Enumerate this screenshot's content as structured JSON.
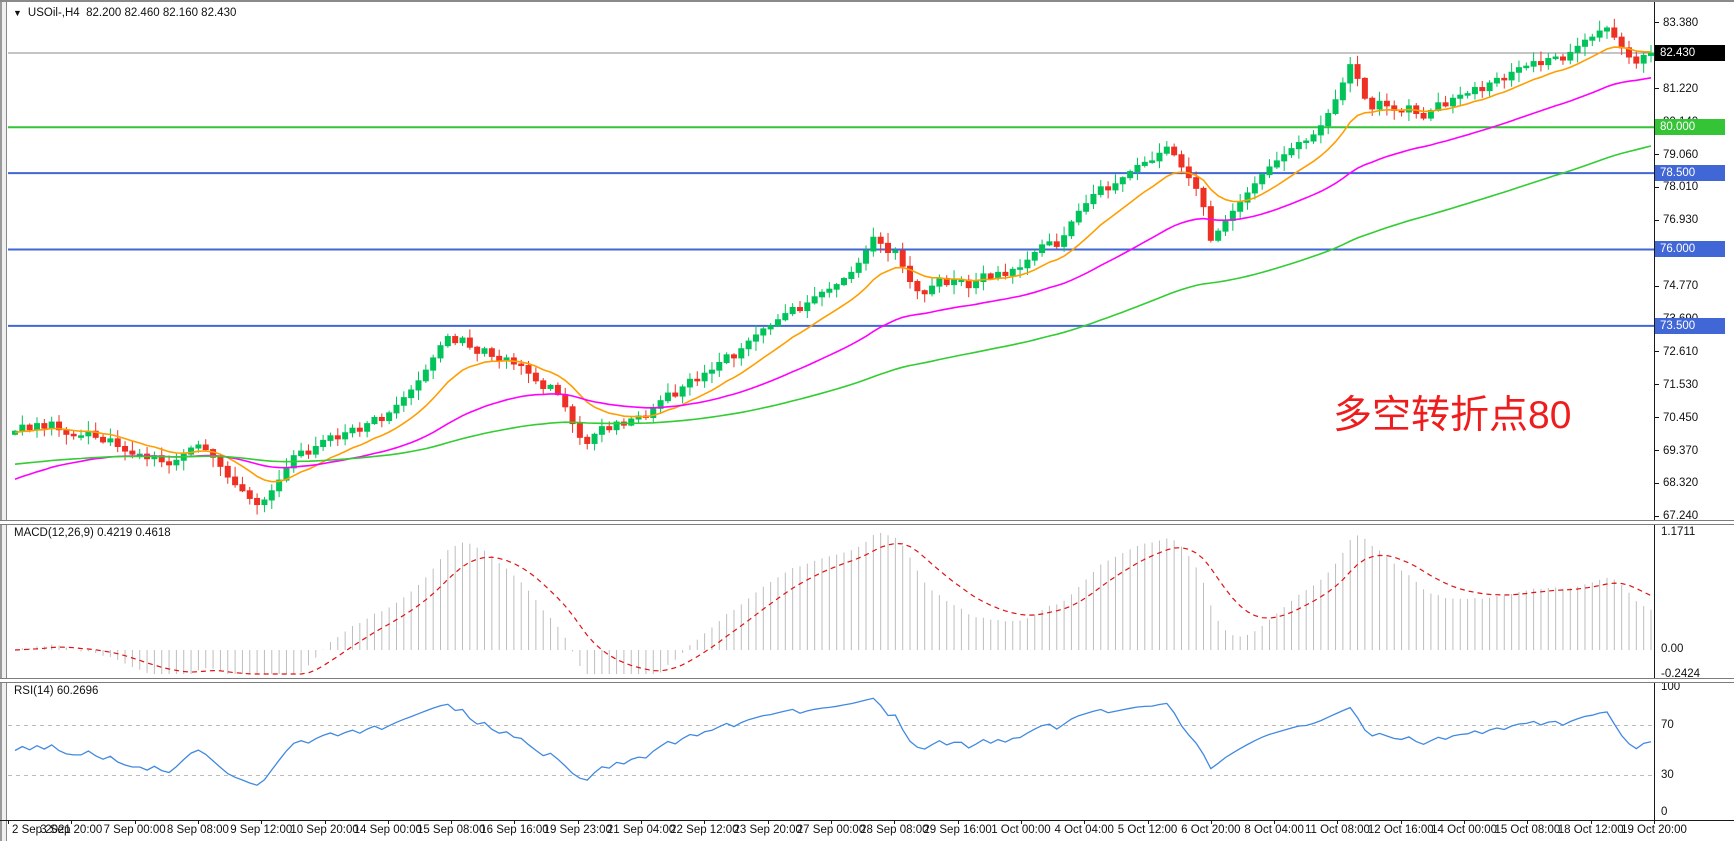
{
  "header": {
    "dropdown_icon": "▼",
    "symbol_timeframe": "USOil-,H4",
    "ohlc_text": "82.200 82.460 82.160 82.430"
  },
  "annotation": {
    "text": "多空转折点80",
    "color": "#ee1c1c"
  },
  "colors": {
    "bull": "#00c45a",
    "bear": "#ee3124",
    "ma_fast": "#ff9e00",
    "ma_mid": "#ff00ff",
    "ma_slow": "#33cc33",
    "level_blue": "#4166d5",
    "level_green": "#35c435",
    "current_line": "#8a8a8a",
    "current_badge_bg": "#000000",
    "macd_hist": "#bdbdbd",
    "macd_signal": "#e01212",
    "rsi_line": "#4189e0",
    "dashed_level": "#bbbbbb"
  },
  "price_axis": {
    "ticks": [
      "83.380",
      "82.300",
      "81.220",
      "80.140",
      "79.060",
      "78.010",
      "76.930",
      "75.850",
      "74.770",
      "73.690",
      "72.610",
      "71.530",
      "70.450",
      "69.370",
      "68.320",
      "67.240"
    ],
    "badges": [
      {
        "label": "82.430",
        "value": 82.43,
        "style": "current"
      },
      {
        "label": "80.000",
        "value": 80.0,
        "style": "green"
      },
      {
        "label": "78.500",
        "value": 78.5,
        "style": "blue"
      },
      {
        "label": "76.000",
        "value": 76.0,
        "style": "blue"
      },
      {
        "label": "73.500",
        "value": 73.5,
        "style": "blue"
      }
    ]
  },
  "time_axis": {
    "labels": [
      "2 Sep 2021",
      "3 Sep 20:00",
      "7 Sep 00:00",
      "8 Sep 08:00",
      "9 Sep 12:00",
      "10 Sep 20:00",
      "14 Sep 00:00",
      "15 Sep 08:00",
      "16 Sep 16:00",
      "19 Sep 23:00",
      "21 Sep 04:00",
      "22 Sep 12:00",
      "23 Sep 20:00",
      "27 Sep 00:00",
      "28 Sep 08:00",
      "29 Sep 16:00",
      "1 Oct 00:00",
      "4 Oct 04:00",
      "5 Oct 12:00",
      "6 Oct 20:00",
      "8 Oct 04:00",
      "11 Oct 08:00",
      "12 Oct 16:00",
      "14 Oct 00:00",
      "15 Oct 08:00",
      "18 Oct 12:00",
      "19 Oct 20:00"
    ]
  },
  "panels": {
    "macd": {
      "label": "MACD(12,26,9) 0.4219 0.4618",
      "axis_labels": [
        "1.1711",
        "0.00",
        "-0.2424"
      ]
    },
    "rsi": {
      "label": "RSI(14) 60.2696",
      "axis_labels": [
        "100",
        "70",
        "30",
        "0"
      ]
    }
  },
  "chart_data": {
    "type": "candlestick",
    "title": "USOil-,H4",
    "symbol": "USOil-",
    "timeframe": "H4",
    "last_quote": {
      "open": 82.2,
      "high": 82.46,
      "low": 82.16,
      "close": 82.43
    },
    "y_range": [
      67.24,
      83.38
    ],
    "grid": false,
    "levels": [
      {
        "value": 80.0,
        "style": "green"
      },
      {
        "value": 78.5,
        "style": "blue"
      },
      {
        "value": 76.0,
        "style": "blue"
      },
      {
        "value": 73.5,
        "style": "blue"
      }
    ],
    "current_price": 82.43,
    "closes": [
      70.05,
      70.25,
      70.1,
      70.3,
      70.15,
      70.35,
      70.1,
      69.95,
      69.9,
      69.9,
      70.05,
      69.85,
      69.7,
      69.8,
      69.55,
      69.4,
      69.3,
      69.3,
      69.15,
      69.25,
      69.05,
      68.95,
      69.1,
      69.3,
      69.5,
      69.6,
      69.45,
      69.2,
      68.9,
      68.55,
      68.3,
      68.1,
      67.85,
      67.65,
      67.8,
      68.1,
      68.45,
      68.85,
      69.25,
      69.4,
      69.3,
      69.55,
      69.75,
      69.9,
      69.8,
      70.0,
      70.15,
      70.05,
      70.3,
      70.5,
      70.4,
      70.65,
      70.9,
      71.15,
      71.4,
      71.7,
      72.05,
      72.45,
      72.85,
      73.15,
      72.95,
      73.1,
      72.8,
      72.6,
      72.75,
      72.5,
      72.35,
      72.45,
      72.25,
      72.2,
      71.95,
      71.7,
      71.45,
      71.55,
      71.25,
      70.85,
      70.3,
      69.85,
      69.65,
      69.95,
      70.2,
      70.1,
      70.35,
      70.25,
      70.45,
      70.55,
      70.5,
      70.8,
      71.05,
      71.3,
      71.2,
      71.5,
      71.75,
      71.7,
      71.95,
      72.05,
      72.3,
      72.55,
      72.45,
      72.75,
      73.0,
      73.2,
      73.4,
      73.5,
      73.7,
      73.9,
      74.1,
      74.0,
      74.25,
      74.45,
      74.6,
      74.7,
      74.85,
      75.05,
      75.25,
      75.55,
      75.95,
      76.4,
      76.2,
      75.9,
      75.95,
      75.45,
      74.95,
      74.65,
      74.55,
      74.8,
      75.05,
      74.85,
      75.0,
      75.0,
      74.75,
      74.95,
      75.2,
      75.05,
      75.25,
      75.15,
      75.35,
      75.4,
      75.65,
      75.9,
      76.15,
      76.25,
      76.1,
      76.45,
      76.9,
      77.25,
      77.5,
      77.8,
      78.05,
      77.95,
      78.15,
      78.35,
      78.55,
      78.75,
      78.85,
      78.9,
      79.15,
      79.35,
      79.1,
      78.7,
      78.35,
      78.0,
      77.4,
      76.3,
      76.6,
      76.95,
      77.25,
      77.55,
      77.85,
      78.15,
      78.45,
      78.7,
      78.9,
      79.1,
      79.3,
      79.5,
      79.55,
      79.75,
      80.05,
      80.45,
      80.9,
      81.45,
      82.05,
      81.6,
      80.95,
      80.6,
      80.85,
      80.7,
      80.55,
      80.5,
      80.7,
      80.45,
      80.3,
      80.55,
      80.8,
      80.7,
      80.95,
      81.05,
      81.1,
      81.3,
      81.2,
      81.45,
      81.6,
      81.55,
      81.8,
      81.95,
      82.0,
      82.15,
      82.05,
      82.25,
      82.3,
      82.2,
      82.45,
      82.65,
      82.85,
      82.95,
      83.15,
      83.25,
      82.95,
      82.6,
      82.3,
      82.1,
      82.35,
      82.43
    ],
    "moving_averages": [
      {
        "name": "fast",
        "period": 12,
        "color_key": "ma_fast",
        "seed": 70.0
      },
      {
        "name": "mid",
        "period": 40,
        "color_key": "ma_mid",
        "seed": 68.4
      },
      {
        "name": "slow",
        "period": 100,
        "color_key": "ma_slow",
        "seed": 68.95
      }
    ],
    "indicators": [
      {
        "type": "MACD",
        "params": [
          12,
          26,
          9
        ],
        "current_macd": 0.4219,
        "current_signal": 0.4618,
        "scale_max": 1.1711,
        "scale_min": -0.2424
      },
      {
        "type": "RSI",
        "params": [
          14
        ],
        "current": 60.2696,
        "scale": [
          0,
          100
        ],
        "levels": [
          70,
          30
        ]
      }
    ]
  }
}
